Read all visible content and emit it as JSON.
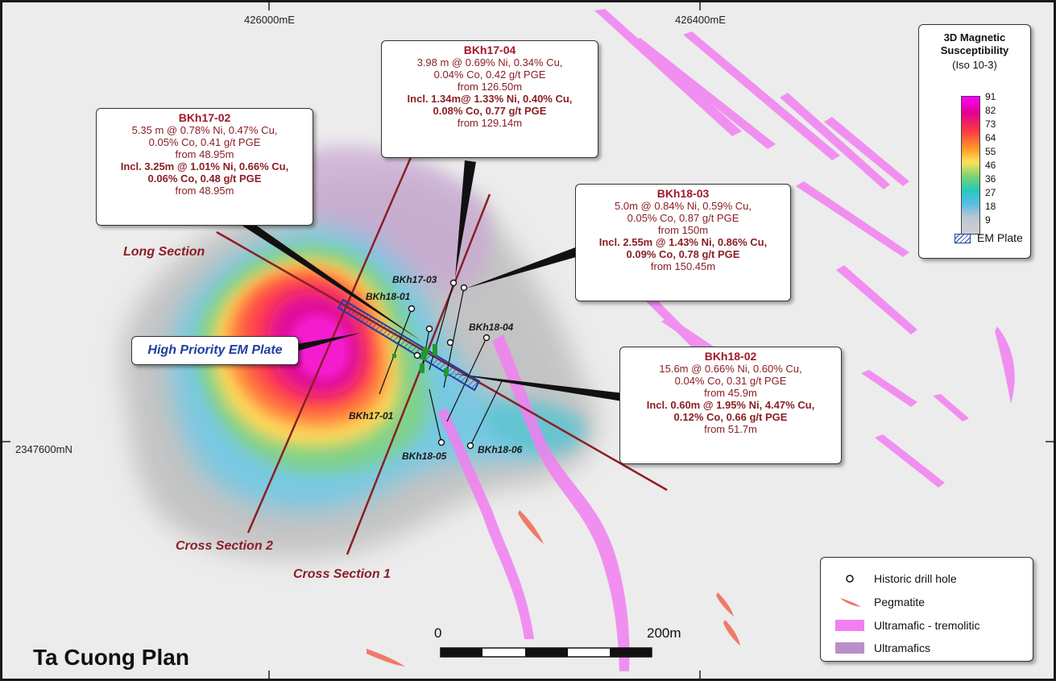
{
  "map_title": "Ta Cuong Plan",
  "coordinates": {
    "easting_left": "426000mE",
    "easting_right": "426400mE",
    "northing": "2347600mN"
  },
  "callouts": {
    "bkh17_02": {
      "title": "BKh17-02",
      "lines": [
        "5.35 m @ 0.78% Ni, 0.47% Cu,",
        "0.05% Co, 0.41 g/t PGE",
        "from 48.95m"
      ],
      "bold_lines": [
        "Incl. 3.25m @ 1.01% Ni, 0.66% Cu,",
        "0.06% Co, 0.48 g/t PGE"
      ],
      "tail": "from 48.95m"
    },
    "bkh17_04": {
      "title": "BKh17-04",
      "lines": [
        "3.98 m @ 0.69% Ni, 0.34% Cu,",
        "0.04% Co, 0.42 g/t PGE",
        "from 126.50m"
      ],
      "bold_lines": [
        "Incl. 1.34m@ 1.33% Ni, 0.40% Cu,",
        "0.08% Co, 0.77 g/t PGE"
      ],
      "tail": "from 129.14m"
    },
    "bkh18_03": {
      "title": "BKh18-03",
      "lines": [
        "5.0m @ 0.84% Ni, 0.59% Cu,",
        "0.05% Co, 0.87 g/t PGE",
        "from 150m"
      ],
      "bold_lines": [
        "Incl. 2.55m @ 1.43% Ni, 0.86% Cu,",
        "0.09% Co, 0.78 g/t PGE"
      ],
      "tail": "from 150.45m"
    },
    "bkh18_02": {
      "title": "BKh18-02",
      "lines": [
        "15.6m @ 0.66% Ni, 0.60% Cu,",
        "0.04% Co, 0.31 g/t PGE",
        "from 45.9m"
      ],
      "bold_lines": [
        "Incl. 0.60m @ 1.95% Ni, 4.47% Cu,",
        "0.12% Co, 0.66 g/t PGE"
      ],
      "tail": "from 51.7m"
    }
  },
  "drill_holes": {
    "bkh17_03": "BKh17-03",
    "bkh18_01": "BKh18-01",
    "bkh18_04": "BKh18-04",
    "bkh17_01": "BKh17-01",
    "bkh18_05": "BKh18-05",
    "bkh18_06": "BKh18-06"
  },
  "sections": {
    "long": "Long Section",
    "cross2": "Cross Section 2",
    "cross1": "Cross Section 1"
  },
  "em_plate_label": "High Priority EM Plate",
  "colorbar": {
    "title_line1": "3D Magnetic",
    "title_line2": "Susceptibility",
    "subtitle": "(Iso 10-3)",
    "ticks": [
      "91",
      "82",
      "73",
      "64",
      "55",
      "46",
      "36",
      "27",
      "18",
      "9"
    ],
    "em_plate_legend": "EM Plate"
  },
  "legend": {
    "drill_hole": "Historic drill hole",
    "pegmatite": "Pegmatite",
    "ultramafic_tremolitic": "Ultramafic - tremolitic",
    "ultramafics": "Ultramafics"
  },
  "scale_bar": {
    "zero": "0",
    "max": "200m"
  },
  "colors": {
    "section_line": "#8b1f24",
    "callout_text": "#8a1f24",
    "em_plate": "#1d3fa0",
    "tremolitic": "#f27ff2",
    "ultramafics": "#b98fc9",
    "pegmatite": "#f07a6a"
  }
}
